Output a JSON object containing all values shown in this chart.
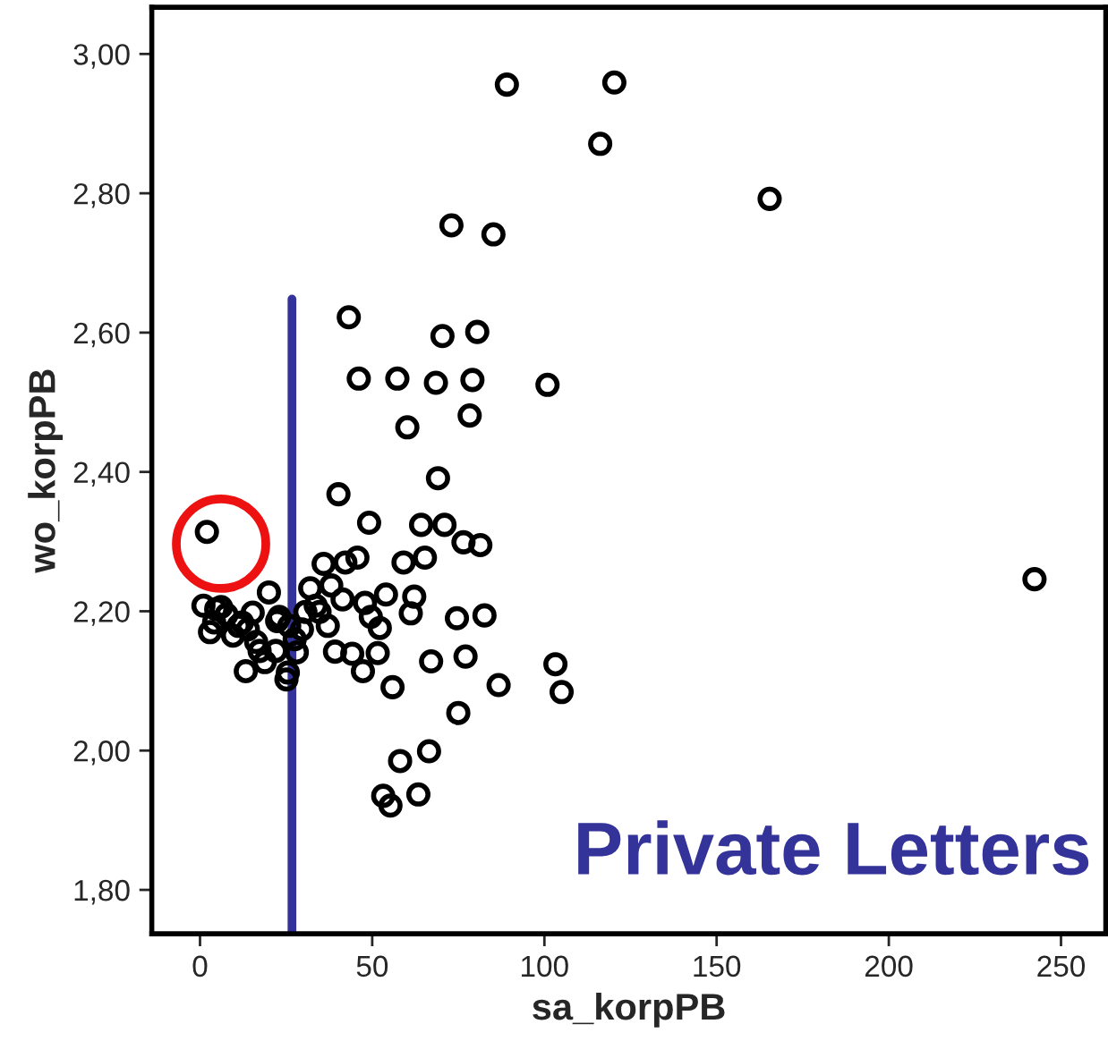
{
  "chart_data": {
    "type": "scatter",
    "xlabel": "sa_korpPB",
    "ylabel": "wo_korpPB",
    "x": [
      89.1,
      120.3,
      116.2,
      165.4,
      73.0,
      85.2,
      43.2,
      70.4,
      80.5,
      46.1,
      57.3,
      68.5,
      79.1,
      100.9,
      78.3,
      60.2,
      69.1,
      40.2,
      49.1,
      64.2,
      71.0,
      76.5,
      81.4,
      2.0,
      35.9,
      42.2,
      45.7,
      59.1,
      65.3,
      242.3,
      20.0,
      32.0,
      38.1,
      41.4,
      54.0,
      62.2,
      1.0,
      6.1,
      2.9,
      7.7,
      9.6,
      12.2,
      15.3,
      16.3,
      13.3,
      18.8,
      22.0,
      23.0,
      25.5,
      25.1,
      28.1,
      29.6,
      33.6,
      37.1,
      47.9,
      49.6,
      52.2,
      51.6,
      44.2,
      39.2,
      47.3,
      55.9,
      61.2,
      74.6,
      82.6,
      67.1,
      77.1,
      103.2,
      86.7,
      105.0,
      75.0,
      66.5,
      58.1,
      63.4,
      53.2,
      55.3,
      4.7,
      11.2,
      17.3,
      30.6,
      34.7,
      25.9,
      27.5,
      22.4,
      4.1,
      13.9
    ],
    "series": [
      {
        "color": "#000000",
        "values": [
          2.956,
          2.959,
          2.871,
          2.792,
          2.754,
          2.741,
          2.622,
          2.595,
          2.601,
          2.534,
          2.534,
          2.528,
          2.532,
          2.525,
          2.481,
          2.464,
          2.391,
          2.368,
          2.327,
          2.324,
          2.324,
          2.299,
          2.295,
          2.314,
          2.268,
          2.27,
          2.277,
          2.27,
          2.277,
          2.246,
          2.227,
          2.233,
          2.237,
          2.217,
          2.224,
          2.221,
          2.208,
          2.206,
          2.17,
          2.195,
          2.165,
          2.184,
          2.198,
          2.156,
          2.114,
          2.127,
          2.143,
          2.192,
          2.112,
          2.102,
          2.141,
          2.174,
          2.208,
          2.179,
          2.212,
          2.192,
          2.176,
          2.14,
          2.139,
          2.142,
          2.114,
          2.091,
          2.197,
          2.19,
          2.194,
          2.128,
          2.135,
          2.124,
          2.094,
          2.084,
          2.054,
          1.999,
          1.985,
          1.937,
          1.935,
          1.921,
          2.203,
          2.179,
          2.143,
          2.199,
          2.199,
          2.179,
          2.16,
          2.186,
          2.184,
          2.174
        ]
      }
    ],
    "marker": "circle",
    "grid": false,
    "xlim": [
      -14,
      263
    ],
    "xticks": [
      0,
      50,
      100,
      150,
      200,
      250
    ],
    "ylim": [
      1.737,
      3.067
    ],
    "yticks": [
      {
        "value": 1.8,
        "label": "1,80"
      },
      {
        "value": 2.0,
        "label": "2,00"
      },
      {
        "value": 2.2,
        "label": "2,20"
      },
      {
        "value": 2.4,
        "label": "2,40"
      },
      {
        "value": 2.6,
        "label": "2,60"
      },
      {
        "value": 2.8,
        "label": "2,80"
      },
      {
        "value": 3.0,
        "label": "3,00"
      }
    ],
    "ref_lines": [
      {
        "axis": "x",
        "value": 26.7,
        "color": "#333399"
      }
    ],
    "annotations": [
      "Private Letters"
    ]
  }
}
